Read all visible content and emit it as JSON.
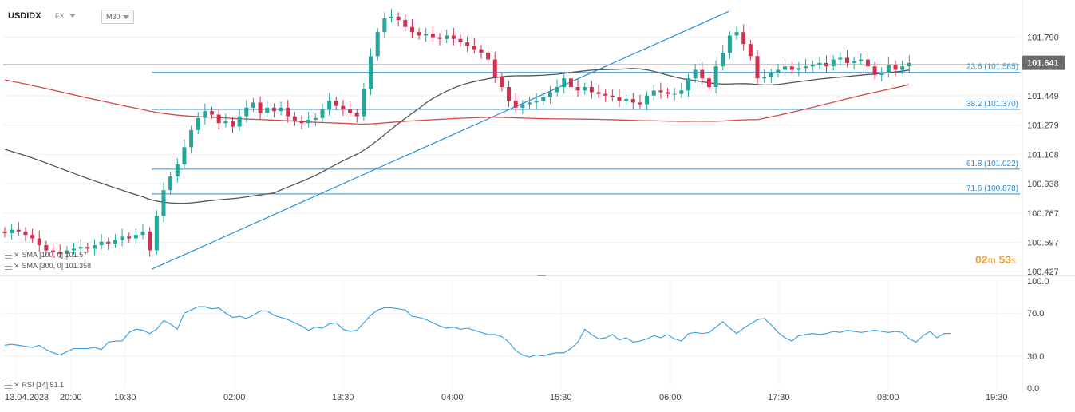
{
  "header": {
    "symbol": "USDIDX",
    "market": "FX",
    "timeframe": "M30"
  },
  "price_axis": {
    "ticks": [
      "101.790",
      "101.449",
      "101.279",
      "101.108",
      "100.938",
      "100.767",
      "100.597",
      "100.427"
    ],
    "current_price": "101.641"
  },
  "rsi_axis": {
    "ticks": [
      "100.0",
      "70.0",
      "30.0",
      "0.0"
    ]
  },
  "time_axis": {
    "ticks": [
      "13.04.2023",
      "20:00",
      "10:30",
      "02:00",
      "13:30",
      "04:00",
      "15:30",
      "06:00",
      "17:30",
      "08:00",
      "19:30"
    ]
  },
  "indicators": {
    "sma1_label": "SMA",
    "sma1_params": "[100, 0]",
    "sma1_value": "101.57",
    "sma2_label": "SMA",
    "sma2_params": "[300, 0]",
    "sma2_value": "101.358",
    "rsi_label": "RSI",
    "rsi_params": "[14]",
    "rsi_value": "51.1"
  },
  "fib_labels": {
    "f236": "23.6 (101.585)",
    "f382": "38.2 (101.370)",
    "f618": "61.8 (101.022)",
    "f716": "71.6 (100.878)"
  },
  "timer": {
    "minutes": "02",
    "m_unit": "m",
    "seconds": "53",
    "s_unit": "s"
  },
  "colors": {
    "up": "#26a69a",
    "down": "#d32f4f",
    "sma100": "#555555",
    "sma300": "#d34a4a",
    "fib": "#2a8fd6",
    "rsi": "#3da2e3",
    "current_price_bg": "#6b6b6b"
  },
  "chart_data": [
    {
      "type": "candlestick",
      "title": "USDIDX",
      "timeframe": "M30",
      "y_range": [
        100.427,
        101.96
      ],
      "x_ticks": [
        "13.04.2023",
        "20:00",
        "10:30",
        "02:00",
        "13:30",
        "04:00",
        "15:30",
        "06:00",
        "17:30",
        "08:00",
        "19:30"
      ],
      "y_ticks": [
        101.79,
        101.449,
        101.279,
        101.108,
        100.938,
        100.767,
        100.597,
        100.427
      ],
      "close_series": [
        100.65,
        100.67,
        100.66,
        100.64,
        100.62,
        100.58,
        100.55,
        100.54,
        100.53,
        100.55,
        100.56,
        100.57,
        100.56,
        100.58,
        100.6,
        100.59,
        100.61,
        100.63,
        100.62,
        100.64,
        100.66,
        100.55,
        100.75,
        100.9,
        100.98,
        101.05,
        101.15,
        101.25,
        101.32,
        101.36,
        101.34,
        101.29,
        101.3,
        101.27,
        101.33,
        101.38,
        101.41,
        101.35,
        101.38,
        101.36,
        101.38,
        101.33,
        101.3,
        101.29,
        101.31,
        101.32,
        101.37,
        101.42,
        101.39,
        101.37,
        101.35,
        101.33,
        101.49,
        101.68,
        101.82,
        101.9,
        101.91,
        101.89,
        101.85,
        101.82,
        101.8,
        101.81,
        101.79,
        101.78,
        101.8,
        101.78,
        101.76,
        101.74,
        101.72,
        101.7,
        101.66,
        101.56,
        101.5,
        101.42,
        101.38,
        101.4,
        101.41,
        101.42,
        101.44,
        101.47,
        101.5,
        101.55,
        101.5,
        101.48,
        101.5,
        101.47,
        101.46,
        101.45,
        101.44,
        101.42,
        101.43,
        101.41,
        101.4,
        101.45,
        101.48,
        101.47,
        101.46,
        101.46,
        101.48,
        101.55,
        101.6,
        101.55,
        101.5,
        101.62,
        101.7,
        101.8,
        101.82,
        101.75,
        101.68,
        101.55,
        101.56,
        101.58,
        101.6,
        101.62,
        101.6,
        101.61,
        101.62,
        101.63,
        101.64,
        101.62,
        101.66,
        101.67,
        101.64,
        101.65,
        101.66,
        101.62,
        101.57,
        101.58,
        101.63,
        101.6,
        101.62,
        101.64
      ],
      "sma_series": [
        {
          "name": "SMA [100, 0]",
          "last": 101.57
        },
        {
          "name": "SMA [300, 0]",
          "last": 101.358
        }
      ],
      "fibonacci": [
        {
          "level": "23.6",
          "price": 101.585
        },
        {
          "level": "38.2",
          "price": 101.37
        },
        {
          "level": "61.8",
          "price": 101.022
        },
        {
          "level": "71.6",
          "price": 100.878
        }
      ],
      "current_price": 101.641
    },
    {
      "type": "line",
      "title": "RSI [14]",
      "y_range": [
        0,
        100
      ],
      "y_ticks": [
        100,
        70,
        30,
        0
      ],
      "last_value": 51.1,
      "values": [
        40,
        41,
        40,
        39,
        38,
        40,
        36,
        33,
        31,
        34,
        37,
        37,
        37,
        38,
        36,
        43,
        44,
        44,
        52,
        55,
        54,
        51,
        55,
        63,
        60,
        55,
        70,
        73,
        76,
        76,
        74,
        75,
        70,
        66,
        67,
        65,
        68,
        72,
        72,
        68,
        66,
        64,
        61,
        58,
        54,
        57,
        56,
        60,
        61,
        55,
        53,
        54,
        61,
        68,
        73,
        75,
        75,
        74,
        73,
        67,
        66,
        64,
        61,
        58,
        56,
        57,
        55,
        56,
        54,
        52,
        50,
        50,
        48,
        43,
        35,
        31,
        29,
        31,
        30,
        32,
        33,
        33,
        37,
        43,
        55,
        50,
        46,
        47,
        50,
        45,
        47,
        43,
        44,
        46,
        49,
        47,
        50,
        46,
        44,
        51,
        52,
        51,
        52,
        57,
        62,
        56,
        51,
        56,
        60,
        64,
        65,
        59,
        52,
        47,
        44,
        49,
        50,
        51,
        50,
        51,
        53,
        52,
        54,
        53,
        52,
        53,
        54,
        53,
        52,
        53,
        52,
        46,
        43,
        49,
        53,
        47,
        51,
        51
      ]
    }
  ]
}
